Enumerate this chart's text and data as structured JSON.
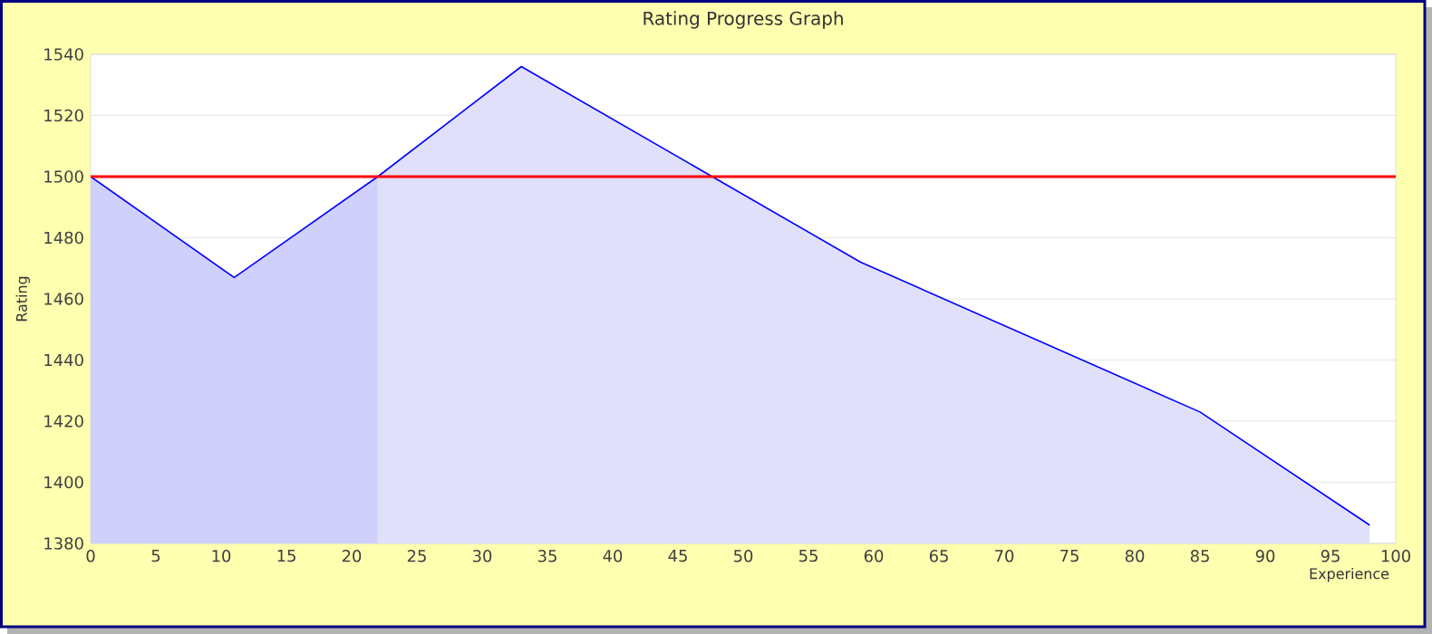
{
  "chart_data": {
    "type": "area",
    "title": "Rating Progress Graph",
    "xlabel": "Experience",
    "ylabel": "Rating",
    "series": [
      {
        "color": "#d0d0fc",
        "x": [
          0,
          11,
          22
        ],
        "values": [
          1500,
          1467,
          1500
        ]
      },
      {
        "color": "#e0e0fb",
        "x": [
          22,
          33,
          59,
          85,
          98
        ],
        "values": [
          1500,
          1536,
          1472,
          1423,
          1386
        ]
      }
    ],
    "xlim": [
      0,
      100
    ],
    "xticks": [
      0,
      5,
      10,
      15,
      20,
      25,
      30,
      35,
      40,
      45,
      50,
      55,
      60,
      65,
      70,
      75,
      80,
      85,
      90,
      95,
      100
    ],
    "ylim": [
      1380,
      1540
    ],
    "yticks": [
      1380,
      1400,
      1420,
      1440,
      1460,
      1480,
      1500,
      1520,
      1540
    ],
    "grid": "y",
    "ref_lines": [
      {
        "axis": "y",
        "value": 1500,
        "color": "#ff0000"
      }
    ]
  }
}
